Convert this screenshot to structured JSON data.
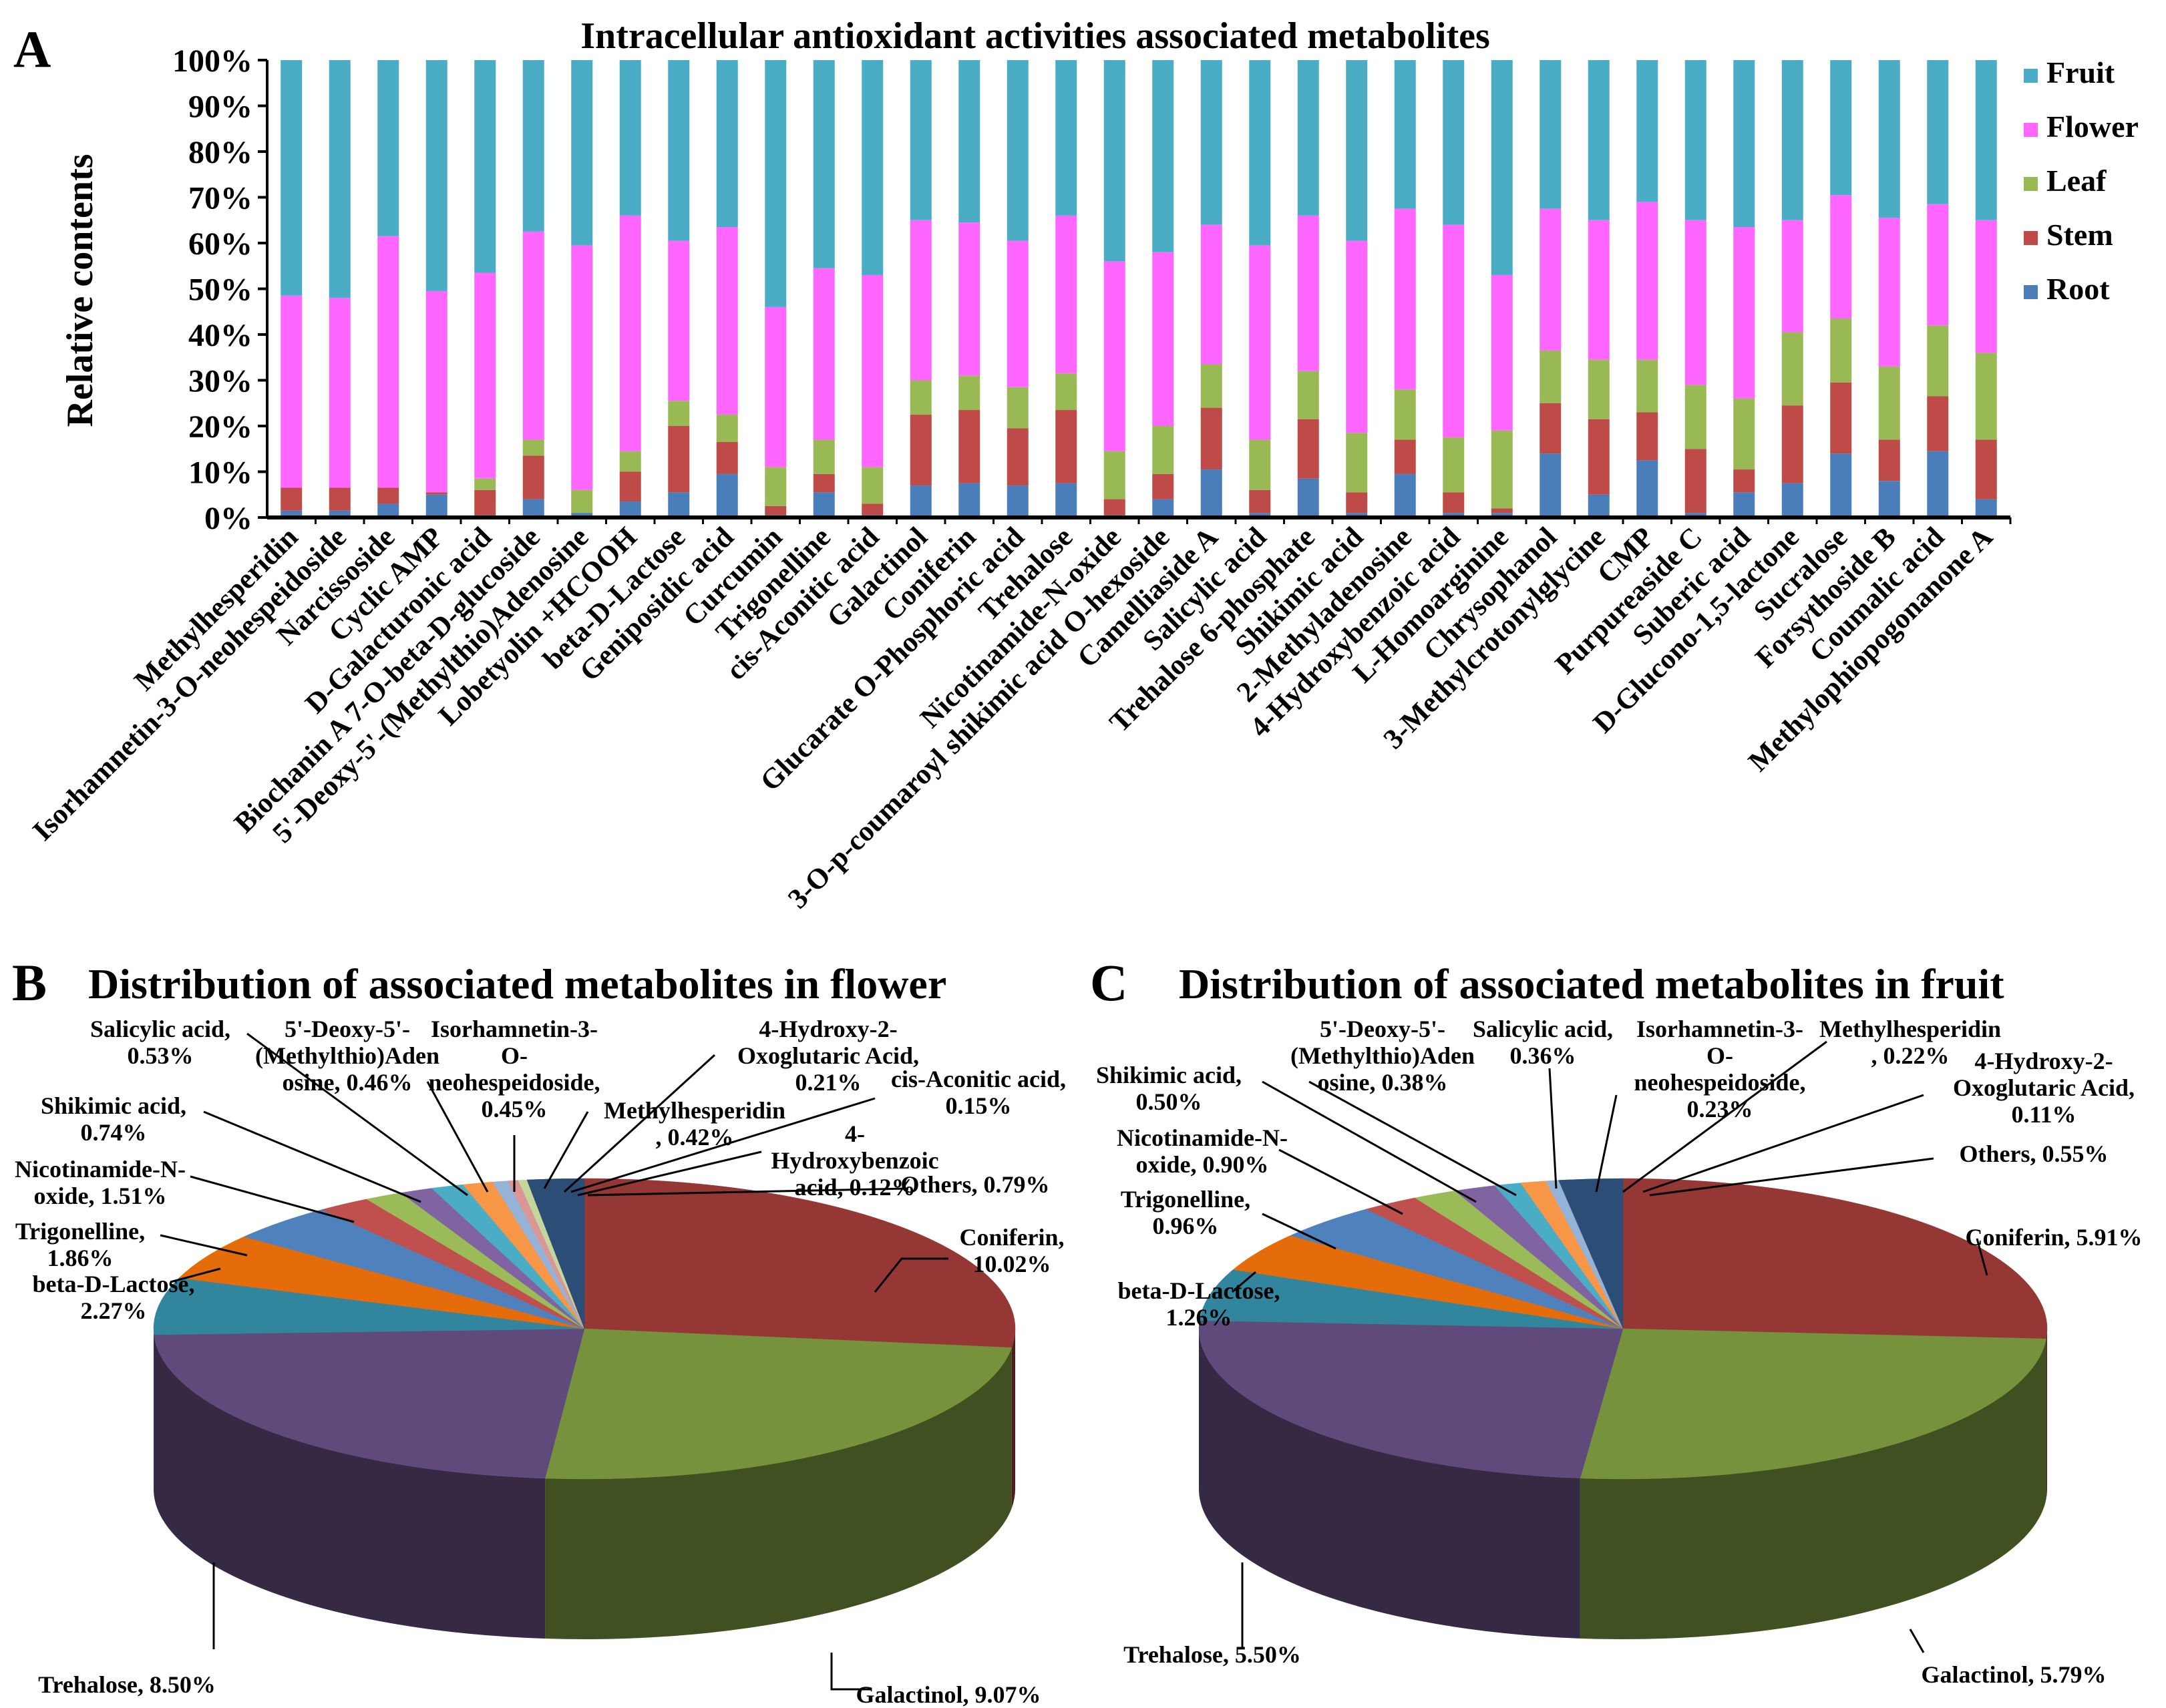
{
  "chart_data": [
    {
      "panel": "A",
      "type": "bar",
      "stacked": true,
      "percent": true,
      "title": "Intracellular antioxidant activities associated metabolites",
      "ylabel": "Relative contents",
      "ylim": [
        0,
        100
      ],
      "yticks": [
        "0%",
        "10%",
        "20%",
        "30%",
        "40%",
        "50%",
        "60%",
        "70%",
        "80%",
        "90%",
        "100%"
      ],
      "legend_position": "right",
      "categories": [
        "Methylhesperidin",
        "Isorhamnetin-3-O-neohespeidoside",
        "Narcissoside",
        "Cyclic AMP",
        "D-Galacturonic acid",
        "Biochanin A 7-O-beta-D-glucoside",
        "5'-Deoxy-5'-(Methylthio)Adenosine",
        "Lobetyolin +HCOOH",
        "beta-D-Lactose",
        "Geniposidic acid",
        "Curcumin",
        "Trigonelline",
        "cis-Aconitic acid",
        "Galactinol",
        "Coniferin",
        "Glucarate O-Phosphoric acid",
        "Trehalose",
        "Nicotinamide-N-oxide",
        "3-O-p-coumaroyl shikimic acid O-hexoside",
        "Camelliaside A",
        "Salicylic acid",
        "Trehalose 6-phosphate",
        "Shikimic acid",
        "2-Methyladenosine",
        "4-Hydroxybenzoic acid",
        "L-Homoarginine",
        "Chrysophanol",
        "3-Methylcrotonylglycine",
        "CMP",
        "Purpureaside C",
        "Suberic acid",
        "D-Glucono-1,5-lactone",
        "Sucralose",
        "Forsythoside B",
        "Coumalic acid",
        "Methylophiopogonanone A"
      ],
      "series": [
        {
          "name": "Root",
          "color": "#4a7ebb",
          "values": [
            1.5,
            1.5,
            3,
            5,
            0.5,
            4,
            1,
            3.5,
            5.5,
            9.5,
            0.5,
            5.5,
            0.5,
            7,
            7.5,
            7,
            7.5,
            0.5,
            4,
            10.5,
            1,
            8.5,
            1,
            9.5,
            1,
            1,
            14,
            5,
            12.5,
            1,
            5.5,
            7.5,
            14,
            8,
            14.5,
            4
          ]
        },
        {
          "name": "Stem",
          "color": "#be4b48",
          "values": [
            5,
            5,
            3.5,
            0.5,
            5.5,
            9.5,
            0,
            6.5,
            14.5,
            7,
            2,
            4,
            2.5,
            15.5,
            16,
            12.5,
            16,
            3.5,
            5.5,
            13.5,
            5,
            13,
            4.5,
            7.5,
            4.5,
            1,
            11,
            16.5,
            10.5,
            14,
            5,
            17,
            15.5,
            9,
            12,
            13
          ]
        },
        {
          "name": "Leaf",
          "color": "#98b954",
          "values": [
            0,
            0,
            0,
            0,
            2.5,
            3.5,
            5,
            4.5,
            5.5,
            6,
            8.5,
            7.5,
            8,
            7.5,
            7.5,
            9,
            8,
            10.5,
            10.5,
            9.5,
            11,
            10.5,
            13,
            11,
            12,
            17,
            11.5,
            13,
            11.5,
            14,
            15.5,
            16,
            14,
            16,
            15.5,
            19
          ]
        },
        {
          "name": "Flower",
          "color": "#ff66ff",
          "values": [
            42,
            41.5,
            55,
            44,
            45,
            45.5,
            53.5,
            51.5,
            35,
            41,
            35,
            37.5,
            42,
            35,
            33.5,
            32,
            34.5,
            41.5,
            38,
            30.5,
            42.5,
            34,
            42,
            39.5,
            46.5,
            34,
            31,
            30.5,
            34.5,
            36,
            37.5,
            24.5,
            27,
            32.5,
            26.5,
            29
          ]
        },
        {
          "name": "Fruit",
          "color": "#4bacc6",
          "values": [
            51.5,
            52,
            38.5,
            50.5,
            46.5,
            37.5,
            40.5,
            34,
            39.5,
            36.5,
            54,
            45.5,
            47,
            35,
            35.5,
            39.5,
            34,
            44,
            42,
            36,
            40.5,
            34,
            39.5,
            32.5,
            36,
            47,
            32.5,
            35,
            31,
            35,
            36.5,
            35,
            29.5,
            34.5,
            31.5,
            35
          ]
        }
      ]
    },
    {
      "panel": "B",
      "type": "pie",
      "title": "Distribution of associated metabolites in flower",
      "slices": [
        {
          "label": "Coniferin, 10.02%",
          "name": "Coniferin",
          "value": 10.02,
          "color": "#953735"
        },
        {
          "label": "Galactinol, 9.07%",
          "name": "Galactinol",
          "value": 9.07,
          "color": "#76923c"
        },
        {
          "label": "Trehalose, 8.50%",
          "name": "Trehalose",
          "value": 8.5,
          "color": "#604a7b"
        },
        {
          "label": "beta-D-Lactose, 2.27%",
          "name": "beta-D-Lactose",
          "value": 2.27,
          "color": "#31859c"
        },
        {
          "label": "Trigonelline, 1.86%",
          "name": "Trigonelline",
          "value": 1.86,
          "color": "#e46c0a"
        },
        {
          "label": "Nicotinamide-N-oxide, 1.51%",
          "name": "Nicotinamide-N-oxide",
          "value": 1.51,
          "color": "#4f81bd"
        },
        {
          "label": "Shikimic acid, 0.74%",
          "name": "Shikimic acid",
          "value": 0.74,
          "color": "#c0504d"
        },
        {
          "label": "Salicylic acid, 0.53%",
          "name": "Salicylic acid",
          "value": 0.53,
          "color": "#9bbb59"
        },
        {
          "label": "5'-Deoxy-5'-(Methylthio)Adenosine, 0.46%",
          "name": "5'-Deoxy-5'-(Methylthio)Adenosine",
          "value": 0.46,
          "color": "#8064a2"
        },
        {
          "label": "Isorhamnetin-3-O-neohespeidoside, 0.45%",
          "name": "Isorhamnetin-3-O-neohespeidoside",
          "value": 0.45,
          "color": "#4bacc6"
        },
        {
          "label": "Methylhesperidin, 0.42%",
          "name": "Methylhesperidin",
          "value": 0.42,
          "color": "#f79646"
        },
        {
          "label": "4-Hydroxy-2-Oxoglutaric Acid, 0.21%",
          "name": "4-Hydroxy-2-Oxoglutaric Acid",
          "value": 0.21,
          "color": "#95b3d7"
        },
        {
          "label": "cis-Aconitic acid, 0.15%",
          "name": "cis-Aconitic acid",
          "value": 0.15,
          "color": "#d99694"
        },
        {
          "label": "4-Hydroxybenzoic acid, 0.12%",
          "name": "4-Hydroxybenzoic acid",
          "value": 0.12,
          "color": "#c3d69b"
        },
        {
          "label": "Others, 0.79%",
          "name": "Others",
          "value": 0.79,
          "color": "#2c4d75"
        }
      ]
    },
    {
      "panel": "C",
      "type": "pie",
      "title": "Distribution of associated metabolites in fruit",
      "slices": [
        {
          "label": "Coniferin, 5.91%",
          "name": "Coniferin",
          "value": 5.91,
          "color": "#953735"
        },
        {
          "label": "Galactinol, 5.79%",
          "name": "Galactinol",
          "value": 5.79,
          "color": "#76923c"
        },
        {
          "label": "Trehalose, 5.50%",
          "name": "Trehalose",
          "value": 5.5,
          "color": "#604a7b"
        },
        {
          "label": "beta-D-Lactose, 1.26%",
          "name": "beta-D-Lactose",
          "value": 1.26,
          "color": "#31859c"
        },
        {
          "label": "Trigonelline, 0.96%",
          "name": "Trigonelline",
          "value": 0.96,
          "color": "#e46c0a"
        },
        {
          "label": "Nicotinamide-N-oxide, 0.90%",
          "name": "Nicotinamide-N-oxide",
          "value": 0.9,
          "color": "#4f81bd"
        },
        {
          "label": "Shikimic acid, 0.50%",
          "name": "Shikimic acid",
          "value": 0.5,
          "color": "#c0504d"
        },
        {
          "label": "5'-Deoxy-5'-(Methylthio)Adenosine, 0.38%",
          "name": "5'-Deoxy-5'-(Methylthio)Adenosine",
          "value": 0.38,
          "color": "#9bbb59"
        },
        {
          "label": "Salicylic acid, 0.36%",
          "name": "Salicylic acid",
          "value": 0.36,
          "color": "#8064a2"
        },
        {
          "label": "Isorhamnetin-3-O-neohespeidoside, 0.23%",
          "name": "Isorhamnetin-3-O-neohespeidoside",
          "value": 0.23,
          "color": "#4bacc6"
        },
        {
          "label": "Methylhesperidin, 0.22%",
          "name": "Methylhesperidin",
          "value": 0.22,
          "color": "#f79646"
        },
        {
          "label": "4-Hydroxy-2-Oxoglutaric Acid, 0.11%",
          "name": "4-Hydroxy-2-Oxoglutaric Acid",
          "value": 0.11,
          "color": "#95b3d7"
        },
        {
          "label": "Others, 0.55%",
          "name": "Others",
          "value": 0.55,
          "color": "#2c4d75"
        }
      ]
    }
  ],
  "panel_letters": {
    "a": "A",
    "b": "B",
    "c": "C"
  },
  "pie_b_labels": [
    {
      "lines": [
        "Coniferin,",
        "10.02%"
      ]
    },
    {
      "lines": [
        "Galactinol, 9.07%"
      ]
    },
    {
      "lines": [
        "Trehalose, 8.50%"
      ]
    },
    {
      "lines": [
        "beta-D-Lactose,",
        "2.27%"
      ]
    },
    {
      "lines": [
        "Trigonelline,",
        "1.86%"
      ]
    },
    {
      "lines": [
        "Nicotinamide-N-",
        "oxide, 1.51%"
      ]
    },
    {
      "lines": [
        "Shikimic acid,",
        "0.74%"
      ]
    },
    {
      "lines": [
        "Salicylic acid,",
        "0.53%"
      ]
    },
    {
      "lines": [
        "5'-Deoxy-5'-",
        "(Methylthio)Aden",
        "osine, 0.46%"
      ]
    },
    {
      "lines": [
        "Isorhamnetin-3-",
        "O-",
        "neohespeidoside,",
        "0.45%"
      ]
    },
    {
      "lines": [
        "Methylhesperidin",
        ", 0.42%"
      ]
    },
    {
      "lines": [
        "4-Hydroxy-2-",
        "Oxoglutaric Acid,",
        "0.21%"
      ]
    },
    {
      "lines": [
        "cis-Aconitic acid,",
        "0.15%"
      ]
    },
    {
      "lines": [
        "4-",
        "Hydroxybenzoic",
        "acid, 0.12%"
      ]
    },
    {
      "lines": [
        "Others, 0.79%"
      ]
    }
  ],
  "pie_c_labels": [
    {
      "lines": [
        "Coniferin, 5.91%"
      ]
    },
    {
      "lines": [
        "Galactinol, 5.79%"
      ]
    },
    {
      "lines": [
        "Trehalose, 5.50%"
      ]
    },
    {
      "lines": [
        "beta-D-Lactose,",
        "1.26%"
      ]
    },
    {
      "lines": [
        "Trigonelline,",
        "0.96%"
      ]
    },
    {
      "lines": [
        "Nicotinamide-N-",
        "oxide, 0.90%"
      ]
    },
    {
      "lines": [
        "Shikimic acid,",
        "0.50%"
      ]
    },
    {
      "lines": [
        "5'-Deoxy-5'-",
        "(Methylthio)Aden",
        "osine, 0.38%"
      ]
    },
    {
      "lines": [
        "Salicylic acid,",
        "0.36%"
      ]
    },
    {
      "lines": [
        "Isorhamnetin-3-",
        "O-",
        "neohespeidoside,",
        "0.23%"
      ]
    },
    {
      "lines": [
        "Methylhesperidin",
        ", 0.22%"
      ]
    },
    {
      "lines": [
        "4-Hydroxy-2-",
        "Oxoglutaric Acid,",
        "0.11%"
      ]
    },
    {
      "lines": [
        "Others, 0.55%"
      ]
    }
  ]
}
